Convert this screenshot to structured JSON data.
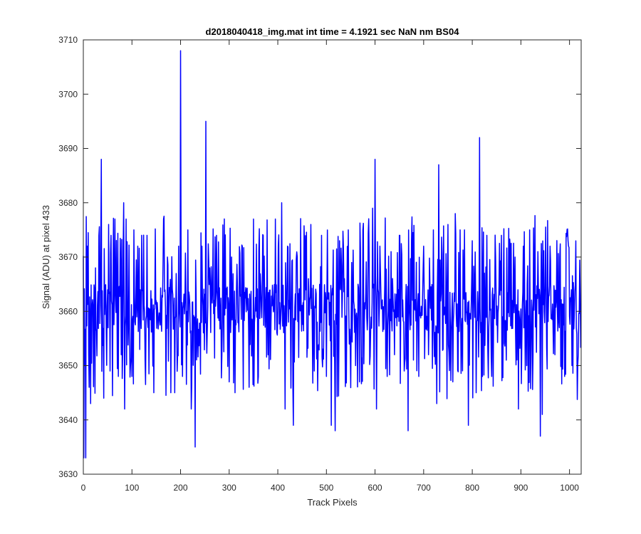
{
  "chart_data": {
    "type": "line",
    "title": "d2018040418_img.mat int time = 4.1921 sec  NaN nm BS04",
    "xlabel": "Track Pixels",
    "ylabel": "Signal (ADU) at pixel 433",
    "xlim": [
      0,
      1024
    ],
    "ylim": [
      3630,
      3710
    ],
    "xticks": [
      0,
      100,
      200,
      300,
      400,
      500,
      600,
      700,
      800,
      900,
      1000
    ],
    "yticks": [
      3630,
      3640,
      3650,
      3660,
      3670,
      3680,
      3690,
      3700,
      3710
    ],
    "grid": false,
    "legend": "none",
    "series_color": "#0000ff",
    "series_baseline": 3660.5,
    "series_count": 1024,
    "spikes": [
      [
        1,
        3633
      ],
      [
        3,
        3650
      ],
      [
        5,
        3633
      ],
      [
        8,
        3672
      ],
      [
        12,
        3646
      ],
      [
        15,
        3643
      ],
      [
        25,
        3668
      ],
      [
        37,
        3688
      ],
      [
        42,
        3644
      ],
      [
        52,
        3676
      ],
      [
        55,
        3649
      ],
      [
        65,
        3677
      ],
      [
        72,
        3648
      ],
      [
        78,
        3652
      ],
      [
        83,
        3680
      ],
      [
        85,
        3642
      ],
      [
        88,
        3677
      ],
      [
        100,
        3648
      ],
      [
        104,
        3675
      ],
      [
        112,
        3672
      ],
      [
        120,
        3674
      ],
      [
        131,
        3674
      ],
      [
        145,
        3645
      ],
      [
        165,
        3677
      ],
      [
        180,
        3645
      ],
      [
        188,
        3645
      ],
      [
        196,
        3672
      ],
      [
        200,
        3708
      ],
      [
        204,
        3648
      ],
      [
        215,
        3675
      ],
      [
        222,
        3642
      ],
      [
        230,
        3635
      ],
      [
        244,
        3672
      ],
      [
        252,
        3695
      ],
      [
        260,
        3668
      ],
      [
        274,
        3674
      ],
      [
        285,
        3652
      ],
      [
        300,
        3647
      ],
      [
        305,
        3670
      ],
      [
        312,
        3645
      ],
      [
        327,
        3672
      ],
      [
        341,
        3646
      ],
      [
        350,
        3677
      ],
      [
        360,
        3648
      ],
      [
        370,
        3674
      ],
      [
        380,
        3652
      ],
      [
        395,
        3677
      ],
      [
        401,
        3672
      ],
      [
        408,
        3680
      ],
      [
        415,
        3642
      ],
      [
        420,
        3672
      ],
      [
        432,
        3639
      ],
      [
        440,
        3670
      ],
      [
        455,
        3672
      ],
      [
        468,
        3676
      ],
      [
        475,
        3649
      ],
      [
        490,
        3674
      ],
      [
        500,
        3648
      ],
      [
        510,
        3639
      ],
      [
        518,
        3638
      ],
      [
        527,
        3673
      ],
      [
        535,
        3672
      ],
      [
        545,
        3675
      ],
      [
        552,
        3669
      ],
      [
        560,
        3650
      ],
      [
        568,
        3647
      ],
      [
        575,
        3675
      ],
      [
        595,
        3679
      ],
      [
        600,
        3688
      ],
      [
        603,
        3642
      ],
      [
        610,
        3672
      ],
      [
        625,
        3648
      ],
      [
        633,
        3671
      ],
      [
        640,
        3652
      ],
      [
        650,
        3674
      ],
      [
        660,
        3649
      ],
      [
        668,
        3638
      ],
      [
        675,
        3673
      ],
      [
        690,
        3648
      ],
      [
        700,
        3672
      ],
      [
        710,
        3652
      ],
      [
        720,
        3675
      ],
      [
        727,
        3643
      ],
      [
        731,
        3687
      ],
      [
        740,
        3653
      ],
      [
        750,
        3676
      ],
      [
        760,
        3647
      ],
      [
        765,
        3678
      ],
      [
        775,
        3675
      ],
      [
        784,
        3675
      ],
      [
        792,
        3639
      ],
      [
        800,
        3673
      ],
      [
        808,
        3645
      ],
      [
        815,
        3692
      ],
      [
        821,
        3648
      ],
      [
        830,
        3674
      ],
      [
        840,
        3648
      ],
      [
        848,
        3670
      ],
      [
        860,
        3674
      ],
      [
        870,
        3651
      ],
      [
        878,
        3672
      ],
      [
        888,
        3670
      ],
      [
        895,
        3642
      ],
      [
        905,
        3672
      ],
      [
        912,
        3650
      ],
      [
        918,
        3675
      ],
      [
        925,
        3652
      ],
      [
        935,
        3671
      ],
      [
        940,
        3637
      ],
      [
        944,
        3641
      ],
      [
        950,
        3665
      ],
      [
        960,
        3672
      ],
      [
        970,
        3652
      ],
      [
        980,
        3670
      ],
      [
        990,
        3648
      ],
      [
        998,
        3672
      ],
      [
        1005,
        3650
      ],
      [
        1012,
        3665
      ],
      [
        1018,
        3652
      ],
      [
        1022,
        3663
      ]
    ]
  }
}
